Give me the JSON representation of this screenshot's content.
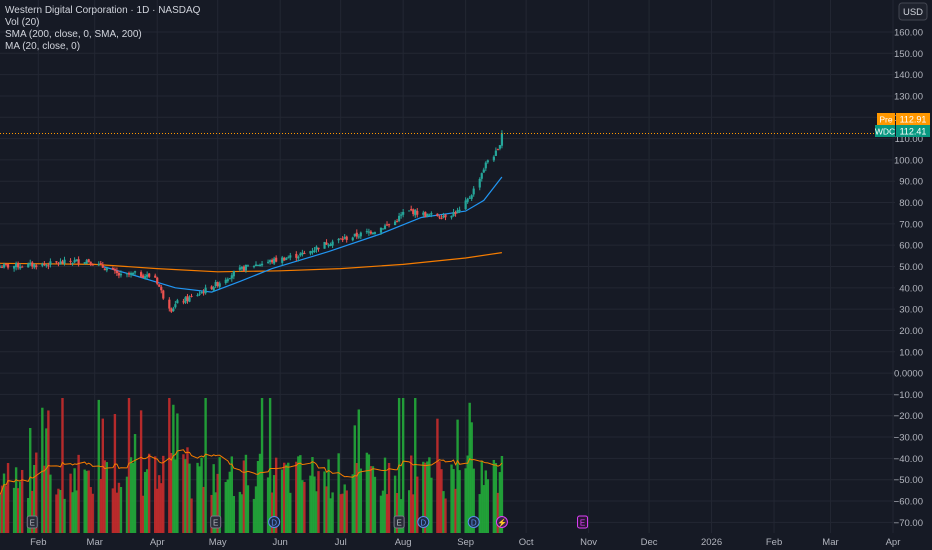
{
  "header": {
    "title": "Western Digital Corporation · 1D · NASDAQ",
    "indicators": [
      "Vol (20)",
      "SMA (200, close, 0, SMA, 200)",
      "MA (20, close, 0)"
    ]
  },
  "toolbar": {
    "currency": "USD"
  },
  "price_tags": {
    "pre": {
      "label": "Pre",
      "value": "112.91"
    },
    "last": {
      "label": "WDC",
      "value": "112.41"
    }
  },
  "colors": {
    "background": "#161a25",
    "grid": "#232733",
    "up": "#26a69a",
    "down": "#ef5350",
    "vol_up": "#22ab3a",
    "vol_down": "#c62c2c",
    "sma200": "#f57c00",
    "ma20": "#2196f3",
    "pre": "#ff9800",
    "last": "#089981",
    "axis_text": "#b2b5be",
    "earnings": "#e040fb"
  },
  "chart_data": {
    "type": "candlestick",
    "y_axis": {
      "range": [
        -75,
        175
      ],
      "ticks": [
        "160.00",
        "150.00",
        "140.00",
        "130.00",
        "120.00",
        "110.00",
        "100.00",
        "90.00",
        "80.00",
        "70.00",
        "60.00",
        "50.00",
        "40.00",
        "30.00",
        "20.00",
        "10.00",
        "0.0000",
        "−10.00",
        "−20.00",
        "−30.00",
        "−40.00",
        "−50.00",
        "−60.00",
        "−70.00"
      ],
      "tick_values": [
        160,
        150,
        140,
        130,
        120,
        110,
        100,
        90,
        80,
        70,
        60,
        50,
        40,
        30,
        20,
        10,
        0,
        -10,
        -20,
        -30,
        -40,
        -50,
        -60,
        -70
      ]
    },
    "x_axis": {
      "labels": [
        "Feb",
        "Mar",
        "Apr",
        "May",
        "Jun",
        "Jul",
        "Aug",
        "Sep",
        "Oct",
        "Nov",
        "Dec",
        "2026",
        "Feb",
        "Mar",
        "Apr"
      ],
      "label_dates": [
        "2025-02-01",
        "2025-03-01",
        "2025-04-01",
        "2025-05-01",
        "2025-06-01",
        "2025-07-01",
        "2025-08-01",
        "2025-09-01",
        "2025-10-01",
        "2025-11-01",
        "2025-12-01",
        "2026-01-01",
        "2026-02-01",
        "2026-03-01",
        "2026-04-01"
      ],
      "start_date": "2025-01-13",
      "end_date": "2026-04-02"
    },
    "close_path": [
      [
        "2025-01-13",
        50
      ],
      [
        "2025-02-05",
        51
      ],
      [
        "2025-02-25",
        53
      ],
      [
        "2025-03-07",
        49
      ],
      [
        "2025-03-14",
        45.5
      ],
      [
        "2025-03-21",
        46.5
      ],
      [
        "2025-03-31",
        45
      ],
      [
        "2025-04-04",
        36
      ],
      [
        "2025-04-08",
        30
      ],
      [
        "2025-04-11",
        33
      ],
      [
        "2025-04-17",
        35
      ],
      [
        "2025-04-25",
        39
      ],
      [
        "2025-05-01",
        42
      ],
      [
        "2025-05-09",
        47
      ],
      [
        "2025-05-16",
        50
      ],
      [
        "2025-05-30",
        53
      ],
      [
        "2025-06-13",
        56
      ],
      [
        "2025-06-24",
        61
      ],
      [
        "2025-07-07",
        64
      ],
      [
        "2025-07-18",
        67
      ],
      [
        "2025-07-28",
        71
      ],
      [
        "2025-08-01",
        75
      ],
      [
        "2025-08-05",
        76
      ],
      [
        "2025-08-13",
        74
      ],
      [
        "2025-08-22",
        74
      ],
      [
        "2025-08-29",
        76
      ],
      [
        "2025-09-02",
        81
      ],
      [
        "2025-09-05",
        86
      ],
      [
        "2025-09-09",
        94
      ],
      [
        "2025-09-12",
        100
      ],
      [
        "2025-09-17",
        104
      ],
      [
        "2025-09-19",
        112.41
      ]
    ],
    "series": [
      {
        "name": "SMA (200, close, 0, SMA, 200)",
        "color": "#f57c00",
        "points": [
          [
            "2025-01-13",
            51.5
          ],
          [
            "2025-03-01",
            51
          ],
          [
            "2025-04-01",
            49
          ],
          [
            "2025-05-01",
            47.5
          ],
          [
            "2025-06-01",
            48
          ],
          [
            "2025-07-01",
            49
          ],
          [
            "2025-08-01",
            51
          ],
          [
            "2025-09-01",
            54
          ],
          [
            "2025-09-19",
            56.5
          ]
        ]
      },
      {
        "name": "MA (20, close, 0)",
        "color": "#2196f3",
        "points": [
          [
            "2025-03-05",
            50
          ],
          [
            "2025-03-20",
            46
          ],
          [
            "2025-04-10",
            40
          ],
          [
            "2025-04-28",
            38
          ],
          [
            "2025-05-12",
            43
          ],
          [
            "2025-05-28",
            49
          ],
          [
            "2025-06-25",
            57
          ],
          [
            "2025-07-20",
            65
          ],
          [
            "2025-08-10",
            73
          ],
          [
            "2025-09-01",
            76
          ],
          [
            "2025-09-10",
            81
          ],
          [
            "2025-09-19",
            92
          ]
        ]
      }
    ],
    "volume": {
      "scale_units": 30,
      "ma_color": "#f57c00"
    },
    "events": [
      {
        "date": "2025-01-29",
        "label": "E",
        "kind": "earnings"
      },
      {
        "date": "2025-04-30",
        "label": "E",
        "kind": "earnings"
      },
      {
        "date": "2025-05-29",
        "label": "D",
        "kind": "dividend"
      },
      {
        "date": "2025-07-30",
        "label": "E",
        "kind": "earnings"
      },
      {
        "date": "2025-08-11",
        "label": "D",
        "kind": "dividend"
      },
      {
        "date": "2025-09-05",
        "label": "D",
        "kind": "dividend"
      },
      {
        "date": "2025-09-19",
        "label": "⚡",
        "kind": "flash"
      },
      {
        "date": "2025-10-29",
        "label": "E",
        "kind": "future-earnings"
      }
    ]
  }
}
